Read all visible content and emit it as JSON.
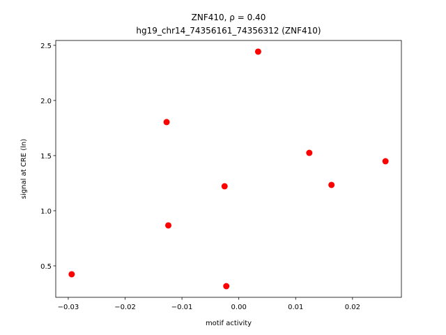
{
  "chart_data": {
    "type": "scatter",
    "title": "ZNF410, ρ = 0.40",
    "subtitle": "hg19_chr14_74356161_74356312 (ZNF410)",
    "xlabel": "motif activity",
    "ylabel": "signal at CRE (ln)",
    "series": [
      {
        "color": "#ff0000",
        "x": [
          -0.0294,
          -0.0127,
          -0.0124,
          -0.0025,
          -0.0022,
          0.0034,
          0.0124,
          0.0163,
          0.0258
        ],
        "values": [
          0.424,
          1.804,
          0.867,
          1.222,
          0.316,
          2.443,
          1.525,
          1.234,
          1.449
        ]
      }
    ],
    "xlim": [
      -0.0322,
      0.0286
    ],
    "ylim": [
      0.215,
      2.544
    ],
    "xticks": [
      {
        "value": -0.03,
        "label": "−0.03"
      },
      {
        "value": -0.02,
        "label": "−0.02"
      },
      {
        "value": -0.01,
        "label": "−0.01"
      },
      {
        "value": 0,
        "label": "0.00"
      },
      0.01,
      0.02
    ],
    "yticks": [
      0.5,
      {
        "value": 1,
        "label": "1.0"
      },
      1.5,
      {
        "value": 2,
        "label": "2.0"
      },
      2.5
    ]
  }
}
